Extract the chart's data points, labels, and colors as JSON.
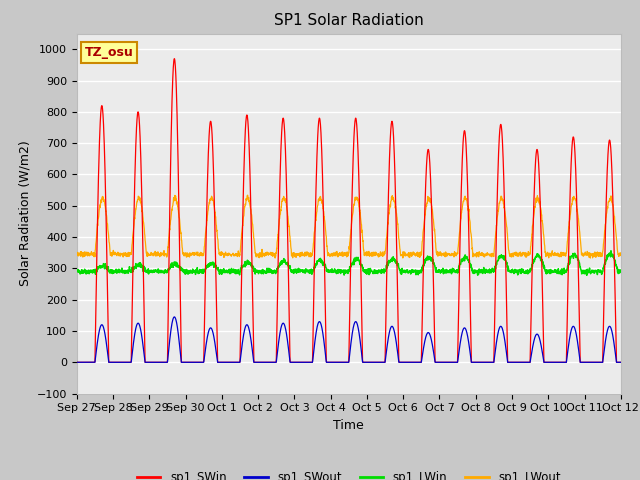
{
  "title": "SP1 Solar Radiation",
  "xlabel": "Time",
  "ylabel": "Solar Radiation (W/m2)",
  "ylim": [
    -100,
    1050
  ],
  "yticks": [
    -100,
    0,
    100,
    200,
    300,
    400,
    500,
    600,
    700,
    800,
    900,
    1000
  ],
  "x_labels": [
    "Sep 27",
    "Sep 28",
    "Sep 29",
    "Sep 30",
    "Oct 1",
    "Oct 2",
    "Oct 3",
    "Oct 4",
    "Oct 5",
    "Oct 6",
    "Oct 7",
    "Oct 8",
    "Oct 9",
    "Oct 10",
    "Oct 11",
    "Oct 12"
  ],
  "annotation_text": "TZ_osu",
  "annotation_bg": "#ffff99",
  "annotation_border": "#cc8800",
  "colors": {
    "sp1_SWin": "#ff0000",
    "sp1_SWout": "#0000cc",
    "sp1_LWin": "#00dd00",
    "sp1_LWout": "#ffaa00"
  },
  "legend_entries": [
    "sp1_SWin",
    "sp1_SWout",
    "sp1_LWin",
    "sp1_LWout"
  ],
  "fig_bg": "#c8c8c8",
  "plot_bg": "#ebebeb",
  "grid_color": "#ffffff",
  "swi_peaks": [
    820,
    800,
    970,
    770,
    790,
    780,
    780,
    780,
    770,
    680,
    740,
    760,
    680,
    720,
    710
  ],
  "swo_peaks": [
    120,
    125,
    145,
    110,
    120,
    125,
    130,
    130,
    115,
    95,
    110,
    115,
    90,
    115,
    115
  ],
  "lwin_base": 290,
  "lwout_base": 345,
  "n_days": 15,
  "pts_per_day": 144
}
